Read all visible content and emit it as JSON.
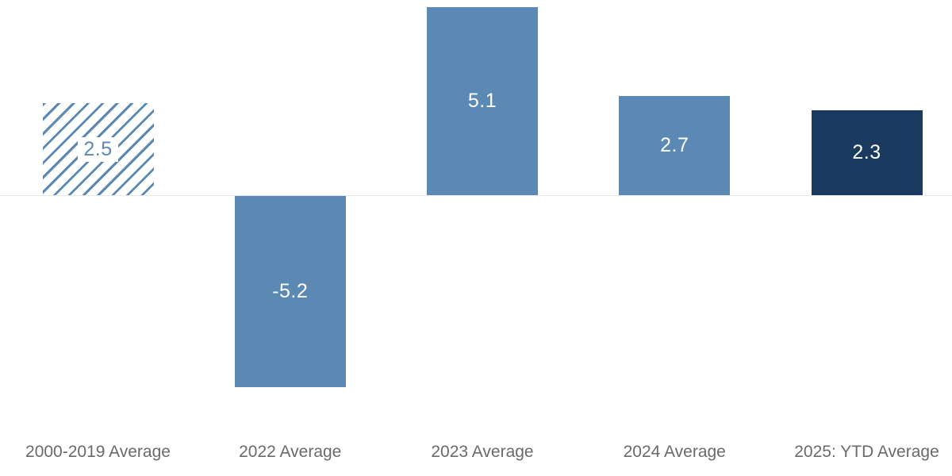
{
  "chart_data": {
    "type": "bar",
    "categories": [
      "2000-2019 Average",
      "2022 Average",
      "2023 Average",
      "2024 Average",
      "2025: YTD Average"
    ],
    "values": [
      2.5,
      -5.2,
      5.1,
      2.7,
      2.3
    ],
    "value_labels": [
      "2.5",
      "-5.2",
      "5.1",
      "2.7",
      "2.3"
    ],
    "bar_styles": [
      "hatched",
      "solid",
      "solid",
      "solid",
      "dark"
    ],
    "baseline_value": 0,
    "axis_ticks_visible": false,
    "gridlines": false,
    "legend": "none",
    "colors": {
      "solid_bar": "#5b89b4",
      "dark_bar": "#1b3a5f",
      "hatch_stripe": "#5b89b4",
      "value_label_on_bar": "#ffffff",
      "value_label_hatched": "#5b89b4",
      "category_label": "#6a6a6a",
      "axis_line": "#e9e9e9",
      "background": "#ffffff"
    }
  }
}
